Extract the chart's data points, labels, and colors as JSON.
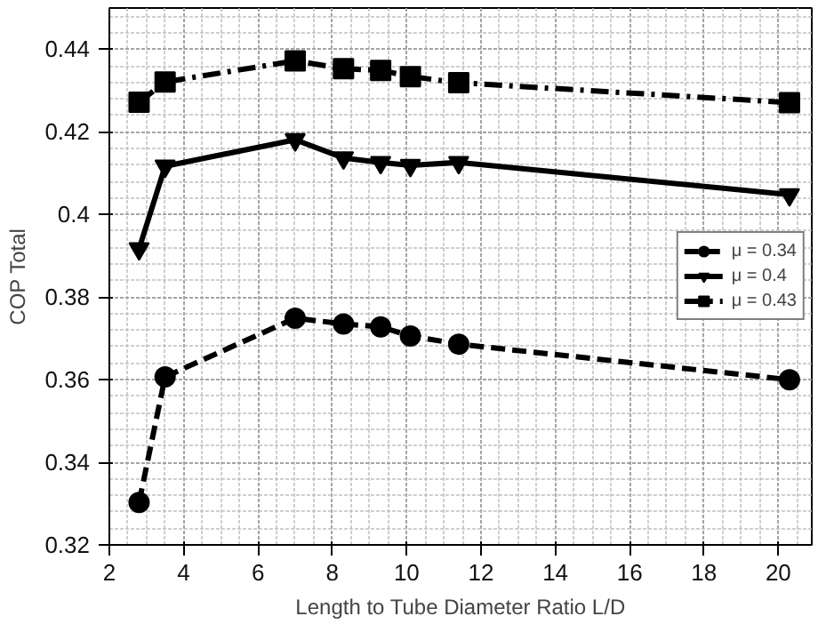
{
  "chart_data": {
    "type": "line",
    "xlabel": "Length to Tube Diameter Ratio L/D",
    "ylabel": "COP Total",
    "x": [
      2.8,
      3.5,
      7,
      8.3,
      9.3,
      10.1,
      11.4,
      20.3
    ],
    "series": [
      {
        "name": "μ = 0.34",
        "color": "#000000",
        "marker": "circle",
        "line_style": "dashed",
        "values": [
          0.3303,
          0.3607,
          0.3749,
          0.3735,
          0.3728,
          0.3706,
          0.3686,
          0.36
        ]
      },
      {
        "name": "μ = 0.4",
        "color": "#000000",
        "marker": "triangle",
        "line_style": "solid",
        "values": [
          0.3917,
          0.4117,
          0.4181,
          0.4137,
          0.4126,
          0.4119,
          0.4126,
          0.4048
        ]
      },
      {
        "name": "μ = 0.43",
        "color": "#000000",
        "marker": "square",
        "line_style": "dashdot",
        "values": [
          0.4272,
          0.4321,
          0.4372,
          0.4353,
          0.4349,
          0.4334,
          0.4319,
          0.4271
        ]
      }
    ],
    "xlim": [
      2,
      20.9
    ],
    "ylim": [
      0.32,
      0.45
    ],
    "xticks": [
      2,
      4,
      6,
      8,
      10,
      12,
      14,
      16,
      18,
      20
    ],
    "yticks": [
      0.32,
      0.34,
      0.36,
      0.38,
      {
        "value": 0.4,
        "label": "0.4"
      },
      0.42,
      0.44
    ],
    "grid": true,
    "legend": "right"
  }
}
